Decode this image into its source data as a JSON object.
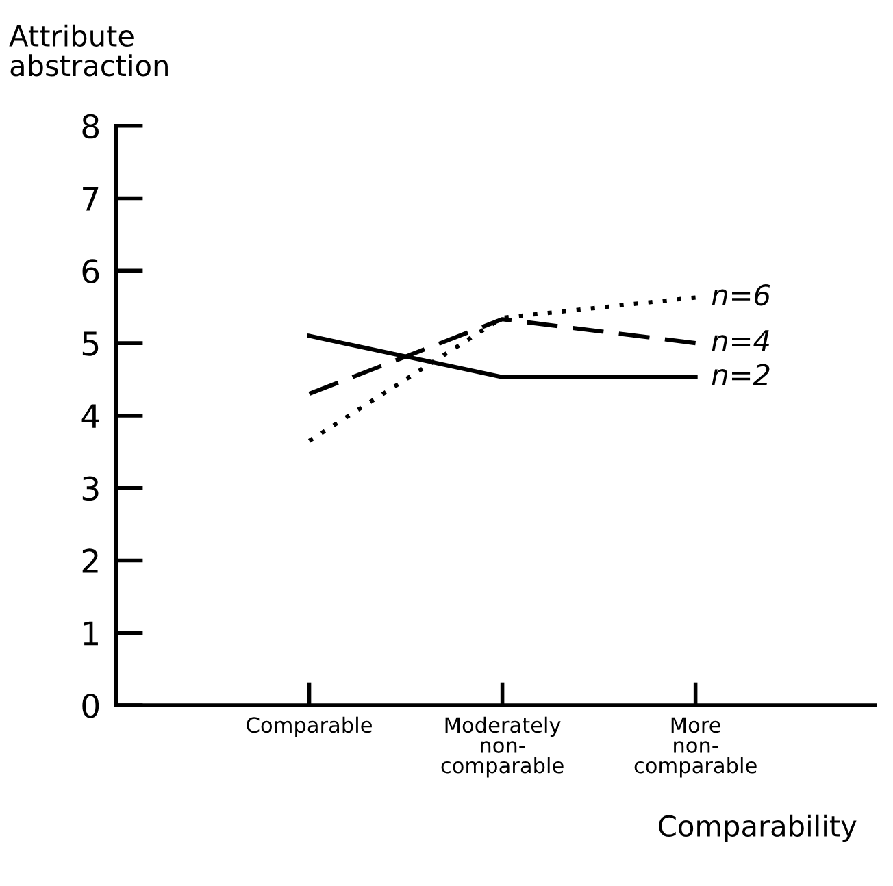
{
  "chart_data": {
    "type": "line",
    "ylabel": "Attribute\nabstraction",
    "xlabel": "Comparability",
    "categories": [
      "Comparable",
      "Moderately\nnon-\ncomparable",
      "More\nnon-\ncomparable"
    ],
    "ylim": [
      0,
      8
    ],
    "yticks": [
      0,
      1,
      2,
      3,
      4,
      5,
      6,
      7,
      8
    ],
    "grid": false,
    "legend": false,
    "marker": "none",
    "series": [
      {
        "name": "n=2",
        "color": "#000000",
        "line_style": "solid",
        "values": [
          5.1,
          4.53,
          4.53
        ]
      },
      {
        "name": "n=4",
        "color": "#000000",
        "line_style": "dashed",
        "values": [
          4.3,
          5.33,
          5.0
        ]
      },
      {
        "name": "n=6",
        "color": "#000000",
        "line_style": "dotted",
        "values": [
          3.65,
          5.35,
          5.63
        ]
      }
    ]
  }
}
